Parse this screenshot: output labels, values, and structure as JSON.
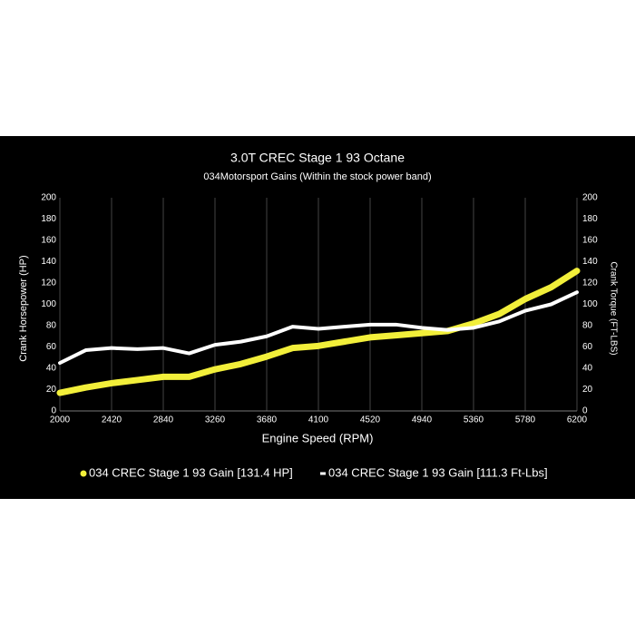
{
  "chart_data": {
    "type": "line",
    "title": "3.0T CREC Stage 1 93 Octane",
    "subtitle": "034Motorsport Gains (Within the stock power band)",
    "x_label": "Engine Speed (RPM)",
    "y_label": "Crank Horsepower (HP)",
    "y2_label": "Crank Torque (FT-LBS)",
    "x": [
      2000,
      2210,
      2420,
      2630,
      2840,
      3050,
      3260,
      3470,
      3680,
      3890,
      4100,
      4310,
      4520,
      4730,
      4940,
      5150,
      5360,
      5570,
      5780,
      5990,
      6200
    ],
    "series": [
      {
        "name": "034 CREC Stage 1 93 Gain [131.4 HP]",
        "color": "#f2ef3a",
        "values": [
          17,
          22,
          26,
          29,
          32,
          32,
          39,
          44,
          51,
          59,
          61,
          65,
          69,
          71,
          73,
          75,
          82,
          91,
          105,
          116,
          131.4
        ]
      },
      {
        "name": "034 CREC Stage 1 93 Gain [111.3 Ft-Lbs]",
        "color": "#ffffff",
        "axis": "y2",
        "values": [
          45,
          57,
          59,
          58,
          59,
          54,
          62,
          65,
          70,
          79,
          77,
          79,
          81,
          81,
          78,
          76,
          78,
          84,
          94,
          100,
          111.3
        ]
      }
    ],
    "xlim": [
      2000,
      6200
    ],
    "xticks": [
      2000,
      2420,
      2840,
      3260,
      3680,
      4100,
      4520,
      4940,
      5360,
      5780,
      6200
    ],
    "ylim": [
      0,
      200
    ],
    "yticks": [
      0,
      20,
      40,
      60,
      80,
      100,
      120,
      140,
      160,
      180,
      200
    ],
    "y2lim": [
      0,
      200
    ],
    "y2ticks": [
      0,
      20,
      40,
      60,
      80,
      100,
      120,
      140,
      160,
      180,
      200
    ],
    "grid": "x"
  }
}
